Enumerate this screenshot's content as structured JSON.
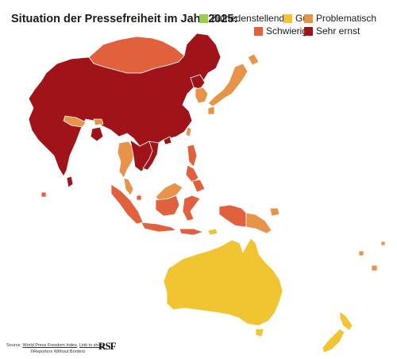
{
  "title": "Situation der Pressefreiheit im Jahr 2025:",
  "legend": [
    {
      "label": "Zufriedenstellend",
      "color": "#9ccc4e"
    },
    {
      "label": "Gut",
      "color": "#f0c531"
    },
    {
      "label": "Problematisch",
      "color": "#e8934a"
    },
    {
      "label": "Schwierig",
      "color": "#e0613c"
    },
    {
      "label": "Sehr ernst",
      "color": "#a01419"
    }
  ],
  "colors": {
    "sehr_ernst": "#a01419",
    "schwierig": "#e0613c",
    "problematisch": "#e8934a",
    "gut": "#f0c531",
    "border": "#ffffff"
  },
  "footer": {
    "source_prefix": "Source: ",
    "source_link": "World Press Freedom Index",
    "separator": ", ",
    "share_link": "Link to share",
    "copyright": "©Reporters Without Borders",
    "logo": "RSF"
  }
}
